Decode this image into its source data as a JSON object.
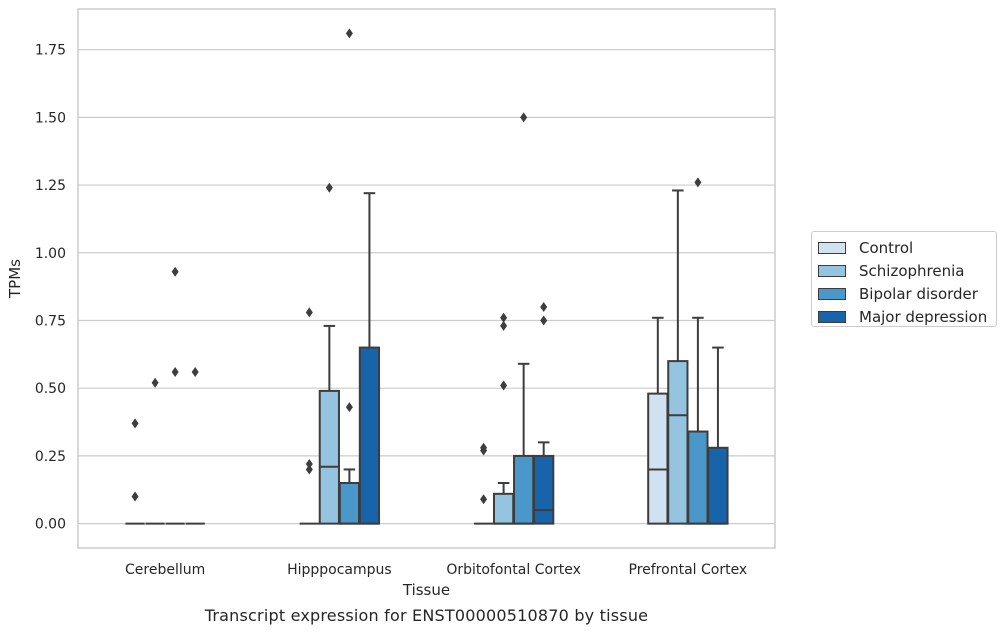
{
  "chart_data": {
    "type": "box",
    "title": "",
    "xlabel": "Tissue",
    "ylabel": "TPMs",
    "ylim": [
      -0.09,
      1.9
    ],
    "yticks": [
      0.0,
      0.25,
      0.5,
      0.75,
      1.0,
      1.25,
      1.5,
      1.75
    ],
    "ytick_labels": [
      "0.00",
      "0.25",
      "0.50",
      "0.75",
      "1.00",
      "1.25",
      "1.50",
      "1.75"
    ],
    "grid": "horizontal",
    "legend_position": "right",
    "categories": [
      "Cerebellum",
      "Hipppocampus",
      "Orbitofontal Cortex",
      "Prefrontal Cortex"
    ],
    "series": [
      {
        "name": "Control",
        "color": "#d0e1f2",
        "boxes": [
          {
            "q1": 0.0,
            "median": 0.0,
            "q3": 0.0,
            "whisker_low": 0.0,
            "whisker_high": 0.0,
            "outliers": [
              0.37,
              0.1
            ]
          },
          {
            "q1": 0.0,
            "median": 0.0,
            "q3": 0.0,
            "whisker_low": 0.0,
            "whisker_high": 0.0,
            "outliers": [
              0.78,
              0.22,
              0.2
            ]
          },
          {
            "q1": 0.0,
            "median": 0.0,
            "q3": 0.0,
            "whisker_low": 0.0,
            "whisker_high": 0.0,
            "outliers": [
              0.28,
              0.27,
              0.09
            ]
          },
          {
            "q1": 0.0,
            "median": 0.2,
            "q3": 0.48,
            "whisker_low": 0.0,
            "whisker_high": 0.76,
            "outliers": []
          }
        ]
      },
      {
        "name": "Schizophrenia",
        "color": "#94c4df",
        "boxes": [
          {
            "q1": 0.0,
            "median": 0.0,
            "q3": 0.0,
            "whisker_low": 0.0,
            "whisker_high": 0.0,
            "outliers": [
              0.52
            ]
          },
          {
            "q1": 0.0,
            "median": 0.21,
            "q3": 0.49,
            "whisker_low": 0.0,
            "whisker_high": 0.73,
            "outliers": [
              1.24
            ]
          },
          {
            "q1": 0.0,
            "median": 0.0,
            "q3": 0.11,
            "whisker_low": 0.0,
            "whisker_high": 0.15,
            "outliers": [
              0.76,
              0.73,
              0.51
            ]
          },
          {
            "q1": 0.0,
            "median": 0.4,
            "q3": 0.6,
            "whisker_low": 0.0,
            "whisker_high": 1.23,
            "outliers": []
          }
        ]
      },
      {
        "name": "Bipolar disorder",
        "color": "#4a98c9",
        "boxes": [
          {
            "q1": 0.0,
            "median": 0.0,
            "q3": 0.0,
            "whisker_low": 0.0,
            "whisker_high": 0.0,
            "outliers": [
              0.93,
              0.56
            ]
          },
          {
            "q1": 0.0,
            "median": 0.0,
            "q3": 0.15,
            "whisker_low": 0.0,
            "whisker_high": 0.2,
            "outliers": [
              1.81,
              0.43
            ]
          },
          {
            "q1": 0.0,
            "median": 0.0,
            "q3": 0.25,
            "whisker_low": 0.0,
            "whisker_high": 0.59,
            "outliers": [
              1.5
            ]
          },
          {
            "q1": 0.0,
            "median": 0.0,
            "q3": 0.34,
            "whisker_low": 0.0,
            "whisker_high": 0.76,
            "outliers": [
              1.26
            ]
          }
        ]
      },
      {
        "name": "Major depression",
        "color": "#1764ab",
        "boxes": [
          {
            "q1": 0.0,
            "median": 0.0,
            "q3": 0.0,
            "whisker_low": 0.0,
            "whisker_high": 0.0,
            "outliers": [
              0.56
            ]
          },
          {
            "q1": 0.0,
            "median": 0.0,
            "q3": 0.65,
            "whisker_low": 0.0,
            "whisker_high": 1.22,
            "outliers": []
          },
          {
            "q1": 0.0,
            "median": 0.05,
            "q3": 0.25,
            "whisker_low": 0.0,
            "whisker_high": 0.3,
            "outliers": [
              0.8,
              0.75
            ]
          },
          {
            "q1": 0.0,
            "median": 0.0,
            "q3": 0.28,
            "whisker_low": 0.0,
            "whisker_high": 0.65,
            "outliers": []
          }
        ]
      }
    ]
  },
  "caption": "Transcript expression for ENST00000510870 by tissue"
}
